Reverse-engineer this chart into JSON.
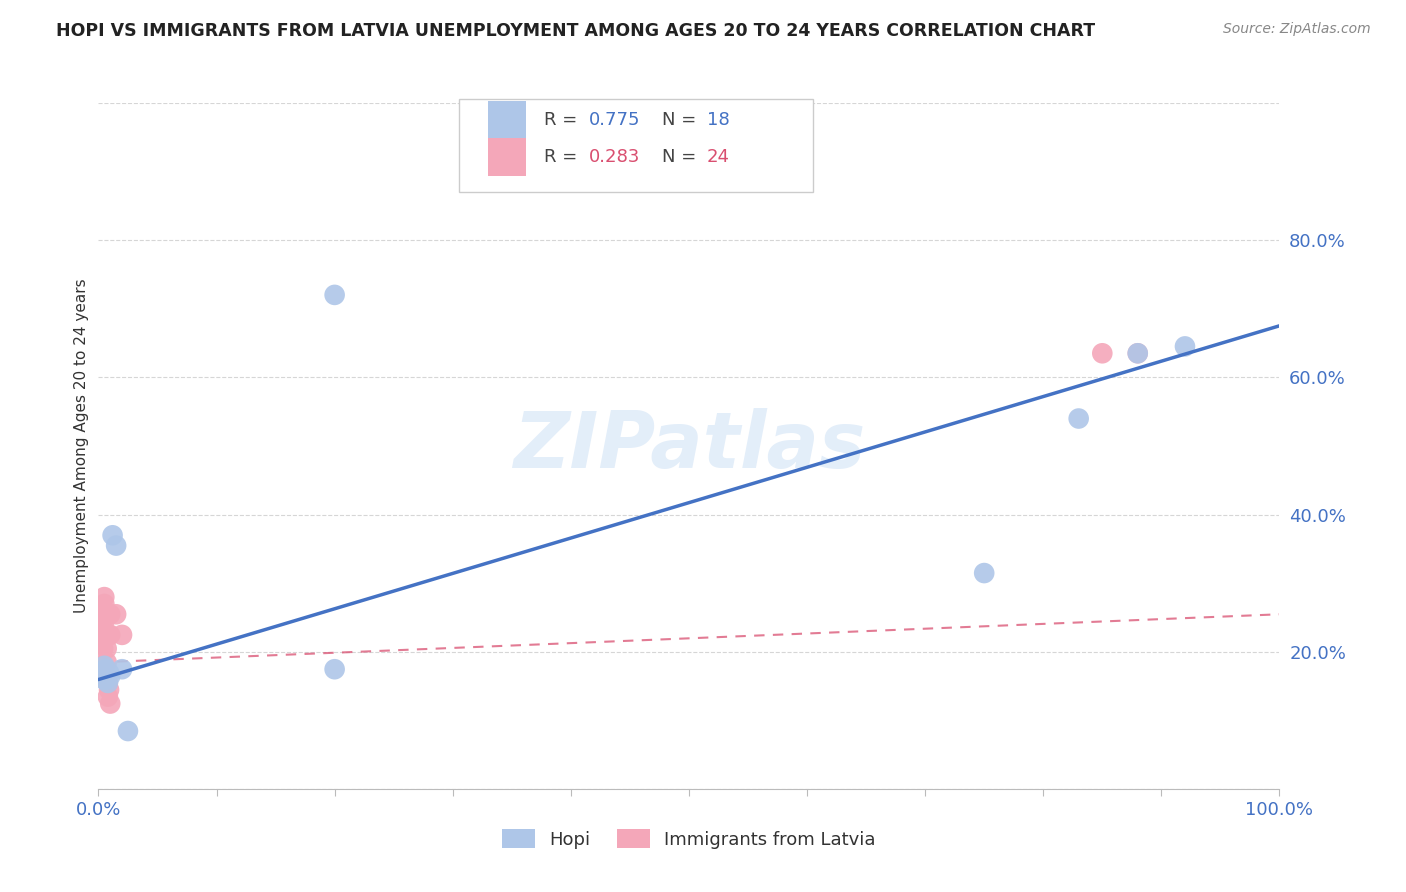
{
  "title": "HOPI VS IMMIGRANTS FROM LATVIA UNEMPLOYMENT AMONG AGES 20 TO 24 YEARS CORRELATION CHART",
  "source": "Source: ZipAtlas.com",
  "ylabel": "Unemployment Among Ages 20 to 24 years",
  "xlim": [
    0.0,
    1.0
  ],
  "ylim": [
    0.0,
    1.0
  ],
  "hopi_R": 0.775,
  "hopi_N": 18,
  "latvia_R": 0.283,
  "latvia_N": 24,
  "hopi_color": "#aec6e8",
  "hopi_line_color": "#4472c4",
  "latvia_color": "#f4a7b9",
  "latvia_line_color": "#d94f70",
  "watermark": "ZIPatlas",
  "background_color": "#ffffff",
  "hopi_points_x": [
    0.005,
    0.005,
    0.005,
    0.006,
    0.007,
    0.008,
    0.009,
    0.01,
    0.012,
    0.015,
    0.02,
    0.025,
    0.2,
    0.2,
    0.75,
    0.83,
    0.88,
    0.92
  ],
  "hopi_points_y": [
    0.18,
    0.17,
    0.16,
    0.175,
    0.16,
    0.155,
    0.17,
    0.165,
    0.37,
    0.355,
    0.175,
    0.085,
    0.72,
    0.175,
    0.315,
    0.54,
    0.635,
    0.645
  ],
  "latvia_points_x": [
    0.003,
    0.003,
    0.003,
    0.004,
    0.004,
    0.005,
    0.005,
    0.005,
    0.005,
    0.006,
    0.007,
    0.007,
    0.007,
    0.008,
    0.008,
    0.009,
    0.009,
    0.01,
    0.01,
    0.01,
    0.015,
    0.02,
    0.85,
    0.88
  ],
  "latvia_points_y": [
    0.265,
    0.245,
    0.225,
    0.225,
    0.205,
    0.28,
    0.27,
    0.255,
    0.245,
    0.225,
    0.205,
    0.185,
    0.165,
    0.155,
    0.135,
    0.225,
    0.145,
    0.255,
    0.225,
    0.125,
    0.255,
    0.225,
    0.635,
    0.635
  ],
  "hopi_trend_x": [
    0.0,
    1.0
  ],
  "hopi_trend_y": [
    0.16,
    0.675
  ],
  "latvia_trend_x": [
    0.0,
    1.0
  ],
  "latvia_trend_y": [
    0.185,
    0.255
  ],
  "x_ticks": [
    0.0,
    0.1,
    0.2,
    0.3,
    0.4,
    0.5,
    0.6,
    0.7,
    0.8,
    0.9,
    1.0
  ],
  "x_tick_labels": [
    "0.0%",
    "",
    "",
    "",
    "",
    "",
    "",
    "",
    "",
    "",
    "100.0%"
  ],
  "y_ticks": [
    0.0,
    0.2,
    0.4,
    0.6,
    0.8,
    1.0
  ],
  "y_tick_labels": [
    "",
    "20.0%",
    "40.0%",
    "60.0%",
    "80.0%",
    ""
  ]
}
